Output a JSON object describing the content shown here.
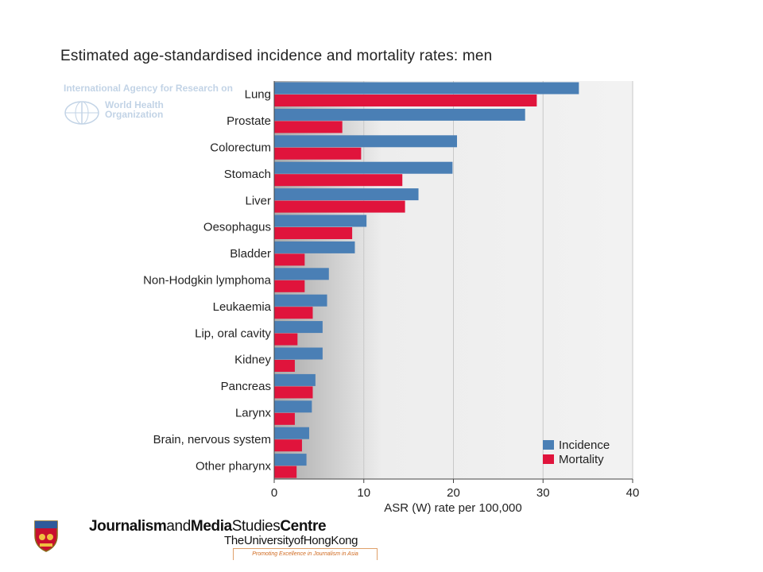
{
  "chart_data": {
    "type": "bar",
    "orientation": "horizontal",
    "title": "Estimated age-standardised incidence and mortality rates: men",
    "xlabel": "ASR (W) rate per 100,000",
    "ylabel": "",
    "xlim": [
      0,
      40
    ],
    "xticks": [
      0,
      10,
      20,
      30,
      40
    ],
    "grid": "vertical",
    "legend_position": "bottom-right",
    "categories": [
      "Lung",
      "Prostate",
      "Colorectum",
      "Stomach",
      "Liver",
      "Oesophagus",
      "Bladder",
      "Non-Hodgkin lymphoma",
      "Leukaemia",
      "Lip, oral cavity",
      "Kidney",
      "Pancreas",
      "Larynx",
      "Brain, nervous system",
      "Other pharynx"
    ],
    "series": [
      {
        "name": "Incidence",
        "color": "#4a7fb5",
        "values": [
          34.0,
          28.0,
          20.4,
          19.9,
          16.1,
          10.3,
          9.0,
          6.1,
          5.9,
          5.4,
          5.4,
          4.6,
          4.2,
          3.9,
          3.6
        ]
      },
      {
        "name": "Mortality",
        "color": "#e0143c",
        "values": [
          29.3,
          7.6,
          9.7,
          14.3,
          14.6,
          8.7,
          3.4,
          3.4,
          4.3,
          2.6,
          2.3,
          4.3,
          2.3,
          3.1,
          2.5
        ]
      }
    ]
  },
  "watermark": {
    "agency": "International Agency for Research on",
    "org_line1": "World Health",
    "org_line2": "Organization"
  },
  "footer": {
    "name_journalism": "Journalism",
    "name_and": "and",
    "name_media": "Media",
    "name_studies": "Studies",
    "name_centre": "Centre",
    "university": "TheUniversityofHongKong",
    "tagline": "Promoting Excellence in Journalism in Asia"
  }
}
